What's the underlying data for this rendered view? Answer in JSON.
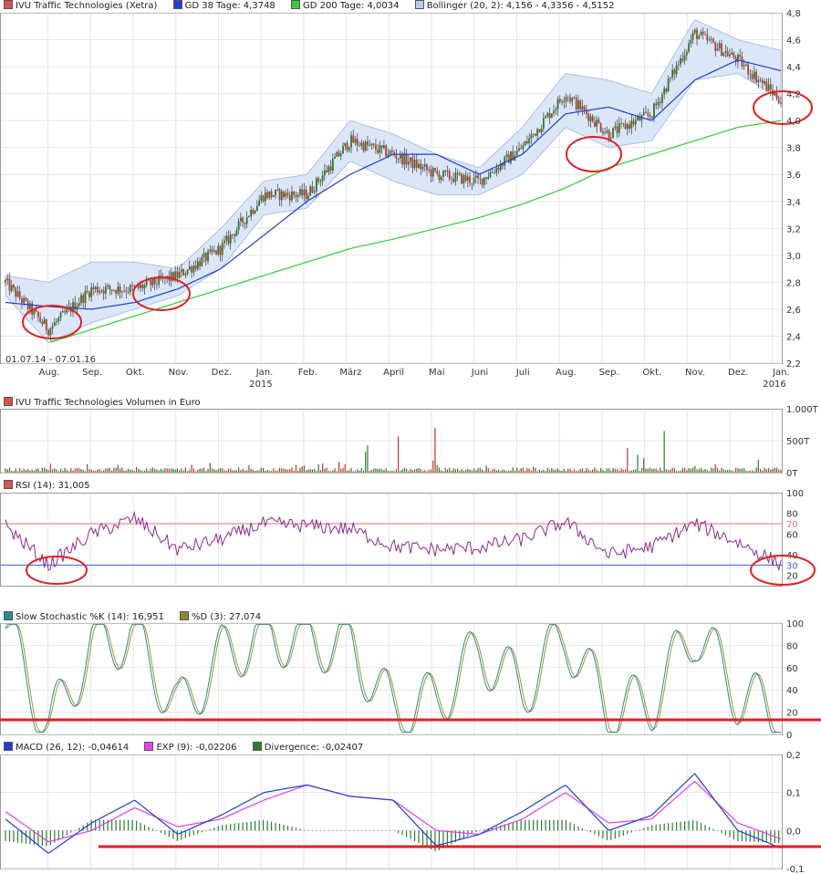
{
  "price_panel": {
    "legend": [
      {
        "label": "IVU Traffic Technologies (Xetra)",
        "color": "#d9534f"
      },
      {
        "label": "GD 38 Tage: 4,3748",
        "color": "#1f3fd6"
      },
      {
        "label": "GD 200 Tage: 4,0034",
        "color": "#33cc33"
      },
      {
        "label": "Bollinger (20, 2): 4,156 - 4,3356 - 4,5152",
        "color": "#b8cdf0"
      }
    ],
    "date_range": "01.07.14 - 07.01.16",
    "y_ticks": [
      "2,2",
      "2,4",
      "2,6",
      "2,8",
      "3,0",
      "3,2",
      "3,4",
      "3,6",
      "3,8",
      "4,0",
      "4,2",
      "4,4",
      "4,6",
      "4,8"
    ],
    "months": [
      "Aug.",
      "Sep.",
      "Okt.",
      "Nov.",
      "Dez.",
      "Jan.",
      "Feb.",
      "März",
      "April",
      "Mai",
      "Juni",
      "Juli",
      "Aug.",
      "Sep.",
      "Okt.",
      "Nov.",
      "Dez.",
      "Jan."
    ],
    "years": [
      "2015",
      "2016"
    ]
  },
  "volume_panel": {
    "legend": [
      {
        "label": "IVU Traffic Technologies Volumen in Euro",
        "color": "#d9534f"
      }
    ],
    "y_ticks": [
      "1.000T",
      "500T",
      "0T"
    ]
  },
  "rsi_panel": {
    "legend": [
      {
        "label": "RSI (14): 31,005",
        "color": "#d9534f"
      }
    ],
    "y_ticks": [
      "100",
      "80",
      "70",
      "60",
      "40",
      "30",
      "20"
    ]
  },
  "stoch_panel": {
    "legend": [
      {
        "label": "Slow Stochastic %K (14): 16,951",
        "color": "#2e8b8b"
      },
      {
        "label": "%D (3): 27,074",
        "color": "#8b8b2e"
      }
    ],
    "y_ticks": [
      "100",
      "80",
      "60",
      "40",
      "20",
      "0"
    ]
  },
  "macd_panel": {
    "legend": [
      {
        "label": "MACD (26, 12): -0,04614",
        "color": "#1f3fd6"
      },
      {
        "label": "EXP (9): -0,02206",
        "color": "#e83ee8"
      },
      {
        "label": "Divergence: -0,02407",
        "color": "#2e7d32"
      }
    ],
    "y_ticks": [
      "0,2",
      "0,1",
      "0,0",
      "-0,1"
    ]
  },
  "chart_data": [
    {
      "type": "line",
      "title": "IVU Traffic Technologies (Xetra)",
      "ylim": [
        2.2,
        4.8
      ],
      "x": [
        "2014-07",
        "2014-08",
        "2014-09",
        "2014-10",
        "2014-11",
        "2014-12",
        "2015-01",
        "2015-02",
        "2015-03",
        "2015-04",
        "2015-05",
        "2015-06",
        "2015-07",
        "2015-08",
        "2015-09",
        "2015-10",
        "2015-11",
        "2015-12",
        "2016-01"
      ],
      "series": [
        {
          "name": "IVU Traffic Technologies (Xetra)",
          "values": [
            2.8,
            2.45,
            2.75,
            2.75,
            2.85,
            3.05,
            3.45,
            3.45,
            3.85,
            3.75,
            3.6,
            3.55,
            3.8,
            4.2,
            3.9,
            4.05,
            4.65,
            4.45,
            4.15
          ]
        },
        {
          "name": "GD 38 Tage",
          "values": [
            2.65,
            2.62,
            2.6,
            2.65,
            2.75,
            2.9,
            3.15,
            3.4,
            3.6,
            3.75,
            3.75,
            3.6,
            3.75,
            4.05,
            4.1,
            4.0,
            4.3,
            4.45,
            4.37
          ]
        },
        {
          "name": "GD 200 Tage",
          "values": [
            null,
            2.35,
            2.45,
            2.55,
            2.65,
            2.75,
            2.85,
            2.95,
            3.05,
            3.12,
            3.2,
            3.28,
            3.38,
            3.5,
            3.65,
            3.75,
            3.85,
            3.95,
            4.0
          ]
        },
        {
          "name": "Bollinger upper",
          "values": [
            2.85,
            2.8,
            2.95,
            2.95,
            2.9,
            3.2,
            3.55,
            3.6,
            4.0,
            3.9,
            3.75,
            3.65,
            3.95,
            4.35,
            4.3,
            4.2,
            4.75,
            4.6,
            4.52
          ]
        },
        {
          "name": "Bollinger lower",
          "values": [
            2.7,
            2.35,
            2.5,
            2.6,
            2.7,
            2.9,
            3.3,
            3.35,
            3.7,
            3.55,
            3.45,
            3.45,
            3.6,
            3.95,
            3.8,
            3.85,
            4.3,
            4.35,
            4.16
          ]
        }
      ]
    },
    {
      "type": "bar",
      "title": "IVU Traffic Technologies Volumen in Euro",
      "ylim": [
        0,
        1000
      ],
      "x": [
        "2014-07",
        "2014-08",
        "2014-09",
        "2014-10",
        "2014-11",
        "2014-12",
        "2015-01",
        "2015-02",
        "2015-03",
        "2015-04",
        "2015-05",
        "2015-06",
        "2015-07",
        "2015-08",
        "2015-09",
        "2015-10",
        "2015-11",
        "2015-12",
        "2016-01"
      ],
      "values": [
        90,
        200,
        110,
        120,
        100,
        150,
        140,
        110,
        170,
        700,
        120,
        100,
        110,
        230,
        650,
        120,
        90,
        240,
        100
      ]
    },
    {
      "type": "line",
      "title": "RSI (14)",
      "ylim": [
        10,
        100
      ],
      "x": [
        "2014-07",
        "2014-08",
        "2014-09",
        "2014-10",
        "2014-11",
        "2014-12",
        "2015-01",
        "2015-02",
        "2015-03",
        "2015-04",
        "2015-05",
        "2015-06",
        "2015-07",
        "2015-08",
        "2015-09",
        "2015-10",
        "2015-11",
        "2015-12",
        "2016-01"
      ],
      "series": [
        {
          "name": "RSI (14)",
          "values": [
            68,
            30,
            60,
            75,
            45,
            55,
            70,
            68,
            65,
            48,
            45,
            47,
            55,
            72,
            40,
            48,
            70,
            52,
            31
          ]
        }
      ]
    },
    {
      "type": "line",
      "title": "Slow Stochastic",
      "ylim": [
        0,
        100
      ],
      "x": [
        "2014-07",
        "2014-08",
        "2014-09",
        "2014-10",
        "2014-11",
        "2014-12",
        "2015-01",
        "2015-02",
        "2015-03",
        "2015-04",
        "2015-05",
        "2015-06",
        "2015-07",
        "2015-08",
        "2015-09",
        "2015-10",
        "2015-11",
        "2015-12",
        "2016-01"
      ],
      "series": [
        {
          "name": "%K (14)",
          "values": [
            95,
            5,
            80,
            90,
            20,
            70,
            90,
            85,
            80,
            20,
            30,
            75,
            40,
            90,
            20,
            30,
            95,
            35,
            17
          ]
        },
        {
          "name": "%D (3)",
          "values": [
            92,
            10,
            75,
            88,
            25,
            65,
            88,
            84,
            78,
            25,
            32,
            70,
            42,
            88,
            25,
            32,
            92,
            40,
            27
          ]
        }
      ]
    },
    {
      "type": "line",
      "title": "MACD",
      "ylim": [
        -0.1,
        0.2
      ],
      "x": [
        "2014-07",
        "2014-08",
        "2014-09",
        "2014-10",
        "2014-11",
        "2014-12",
        "2015-01",
        "2015-02",
        "2015-03",
        "2015-04",
        "2015-05",
        "2015-06",
        "2015-07",
        "2015-08",
        "2015-09",
        "2015-10",
        "2015-11",
        "2015-12",
        "2016-01"
      ],
      "series": [
        {
          "name": "MACD (26, 12)",
          "values": [
            0.03,
            -0.06,
            0.02,
            0.08,
            -0.01,
            0.04,
            0.1,
            0.12,
            0.09,
            0.08,
            -0.04,
            -0.01,
            0.05,
            0.12,
            0.0,
            0.04,
            0.15,
            0.0,
            -0.046
          ]
        },
        {
          "name": "EXP (9)",
          "values": [
            0.05,
            -0.03,
            0.0,
            0.06,
            0.01,
            0.03,
            0.08,
            0.12,
            0.09,
            0.08,
            0.0,
            -0.01,
            0.03,
            0.1,
            0.02,
            0.03,
            0.13,
            0.02,
            -0.022
          ]
        },
        {
          "name": "Divergence",
          "values": [
            0.0,
            -0.03,
            0.02,
            0.02,
            -0.02,
            0.01,
            0.02,
            0.0,
            0.0,
            0.0,
            -0.04,
            0.0,
            0.02,
            0.02,
            -0.02,
            0.01,
            0.02,
            -0.02,
            -0.024
          ]
        }
      ]
    }
  ]
}
